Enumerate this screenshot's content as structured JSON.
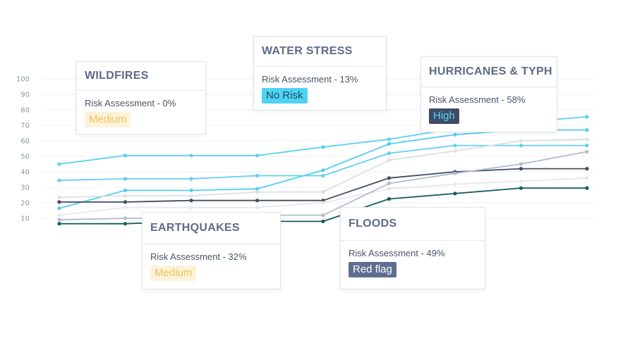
{
  "chart_data": {
    "type": "line",
    "title": "",
    "xlabel": "",
    "ylabel": "",
    "x": [
      1,
      2,
      3,
      4,
      5,
      6,
      7,
      8,
      9
    ],
    "ylim": [
      0,
      100
    ],
    "yticks": [
      10,
      20,
      30,
      40,
      50,
      60,
      70,
      80,
      90,
      100
    ],
    "grid": true,
    "series": [
      {
        "color": "#5ad2f0",
        "values": [
          45,
          50.5,
          50.5,
          50.5,
          56,
          61,
          68,
          72,
          75.5
        ]
      },
      {
        "color": "#63d0f0",
        "values": [
          34.5,
          35.5,
          35.5,
          37.5,
          37.5,
          52,
          57,
          57,
          57
        ]
      },
      {
        "color": "#55cdef",
        "values": [
          16.5,
          28,
          28,
          29,
          41,
          58,
          64,
          67,
          67
        ]
      },
      {
        "color": "#dcdfe4",
        "values": [
          23.5,
          24.5,
          24.5,
          27,
          27,
          47.5,
          53.5,
          60,
          61
        ]
      },
      {
        "color": "#414d63",
        "values": [
          20.5,
          20.5,
          21.5,
          21.5,
          21.5,
          36,
          40,
          42,
          42
        ]
      },
      {
        "color": "#e5e7ea",
        "values": [
          12,
          17,
          17,
          17,
          20,
          29,
          32,
          34,
          36
        ]
      },
      {
        "color": "#b2bccd",
        "values": [
          9,
          10,
          10,
          12,
          12,
          32.5,
          39,
          45,
          53
        ]
      },
      {
        "color": "#155e5c",
        "values": [
          6.5,
          6.5,
          8,
          8,
          8,
          22.5,
          26,
          29.5,
          29.5
        ]
      }
    ]
  },
  "cards": [
    {
      "title": "WILDFIRES",
      "assessment": "Risk Assessment - 0%",
      "badge": "Medium",
      "badge_type": "medium"
    },
    {
      "title": "WATER STRESS",
      "assessment": "Risk Assessment - 13%",
      "badge": "No Risk",
      "badge_type": "norisk"
    },
    {
      "title": "HURRICANES & TYPH",
      "assessment": "Risk Assessment - 58%",
      "badge": "High",
      "badge_type": "high"
    },
    {
      "title": "EARTHQUAKES",
      "assessment": "Risk Assessment - 32%",
      "badge": "Medium",
      "badge_type": "medium"
    },
    {
      "title": "FLOODS",
      "assessment": "Risk Assessment - 49%",
      "badge": "Red flag",
      "badge_type": "redflag"
    }
  ]
}
